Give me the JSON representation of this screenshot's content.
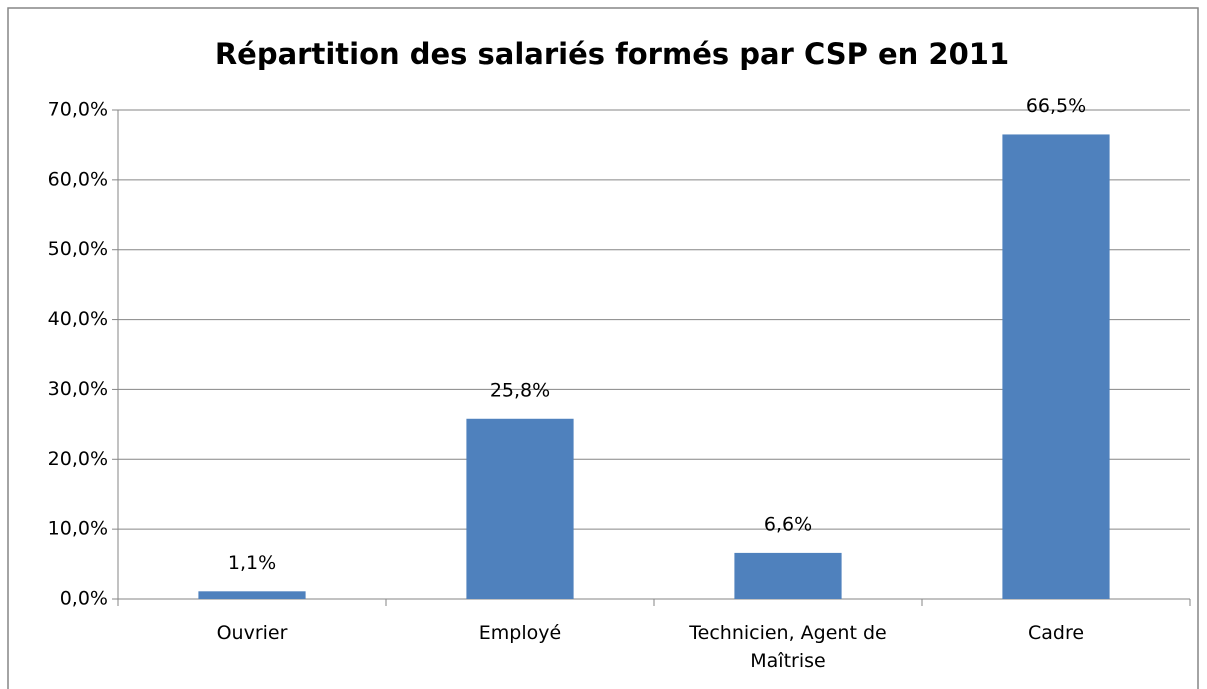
{
  "chart_data": {
    "type": "bar",
    "title": "Répartition des salariés formés par CSP en 2011",
    "categories": [
      "Ouvrier",
      "Employé",
      "Technicien, Agent de Maîtrise",
      "Cadre"
    ],
    "values": [
      1.1,
      25.8,
      6.6,
      66.5
    ],
    "value_labels": [
      "1,1%",
      "25,8%",
      "6,6%",
      "66,5%"
    ],
    "color": "#4f81bd",
    "ylim": [
      0,
      70
    ],
    "yticks": [
      {
        "value": 0,
        "label": "0,0%"
      },
      {
        "value": 10,
        "label": "10,0%"
      },
      {
        "value": 20,
        "label": "20,0%"
      },
      {
        "value": 30,
        "label": "30,0%"
      },
      {
        "value": 40,
        "label": "40,0%"
      },
      {
        "value": 50,
        "label": "50,0%"
      },
      {
        "value": 60,
        "label": "60,0%"
      },
      {
        "value": 70,
        "label": "70,0%"
      }
    ],
    "grid": true
  }
}
